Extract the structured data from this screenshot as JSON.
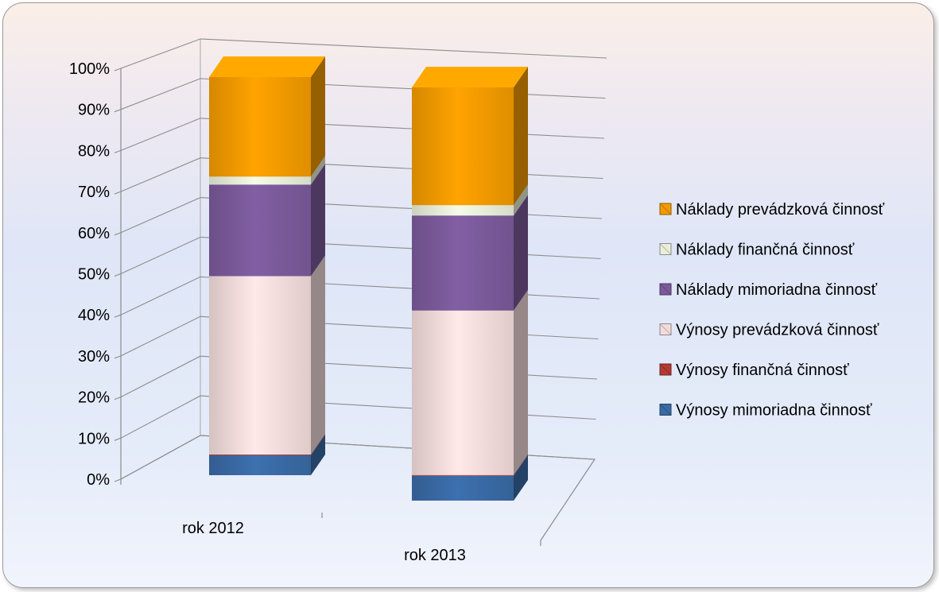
{
  "chart_data": {
    "type": "bar",
    "stacked": true,
    "percent_stacked": true,
    "three_d": true,
    "title": "",
    "xlabel": "",
    "ylabel": "",
    "ylim": [
      0,
      100
    ],
    "y_ticks": [
      "0%",
      "10%",
      "20%",
      "30%",
      "40%",
      "50%",
      "60%",
      "70%",
      "80%",
      "90%",
      "100%"
    ],
    "categories": [
      "rok 2012",
      "rok 2013"
    ],
    "grid": true,
    "legend_position": "right",
    "series": [
      {
        "name": "Výnosy mimoriadna činnosť",
        "color": "#3a6aa5",
        "values": [
          5,
          6
        ]
      },
      {
        "name": "Výnosy finančná činnosť",
        "color": "#b33a32",
        "values": [
          0.2,
          0.2
        ]
      },
      {
        "name": "Výnosy prevádzková činnosť",
        "color": "#f2dcdb",
        "values": [
          44.8,
          39.8
        ]
      },
      {
        "name": "Náklady mimoriadna činnosť",
        "color": "#7b5a9a",
        "values": [
          23,
          23
        ]
      },
      {
        "name": "Náklady finančná činnosť",
        "color": "#e8eed9",
        "values": [
          2,
          2.5
        ]
      },
      {
        "name": "Náklady prevádzková činnosť",
        "color": "#f29a00",
        "values": [
          25,
          28.5
        ]
      }
    ],
    "legend_order": [
      5,
      4,
      3,
      2,
      1,
      0
    ]
  }
}
